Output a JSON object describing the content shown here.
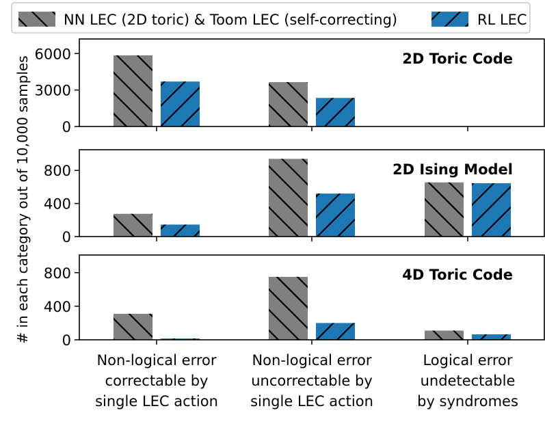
{
  "legend": {
    "position": "top",
    "entries": [
      {
        "label": "NN LEC (2D toric) & Toom LEC (self-correcting)",
        "color": "#808080",
        "hatch": "backslash"
      },
      {
        "label": "RL LEC",
        "color": "#1f77b4",
        "hatch": "slash"
      }
    ]
  },
  "ylabel": "# in each category out of 10,000 samples",
  "categories": [
    [
      "Non-logical error",
      "correctable by",
      "single LEC action"
    ],
    [
      "Non-logical error",
      "uncorrectable by",
      "single LEC action"
    ],
    [
      "Logical error",
      "undetectable",
      "by syndromes"
    ]
  ],
  "chart_data": [
    {
      "type": "bar",
      "title": "2D Toric Code",
      "categories": [
        "Non-logical error correctable by single LEC action",
        "Non-logical error uncorrectable by single LEC action",
        "Logical error undetectable by syndromes"
      ],
      "series": [
        {
          "name": "NN LEC (2D toric) & Toom LEC (self-correcting)",
          "values": [
            5850,
            3650,
            0
          ]
        },
        {
          "name": "RL LEC",
          "values": [
            3700,
            2350,
            0
          ]
        }
      ],
      "yticks": [
        0,
        3000,
        6000
      ],
      "ylim": [
        0,
        7200
      ]
    },
    {
      "type": "bar",
      "title": "2D Ising Model",
      "categories": [
        "Non-logical error correctable by single LEC action",
        "Non-logical error uncorrectable by single LEC action",
        "Logical error undetectable by syndromes"
      ],
      "series": [
        {
          "name": "NN LEC (2D toric) & Toom LEC (self-correcting)",
          "values": [
            275,
            940,
            655
          ]
        },
        {
          "name": "RL LEC",
          "values": [
            145,
            520,
            645
          ]
        }
      ],
      "yticks": [
        0,
        400,
        800
      ],
      "ylim": [
        0,
        1050
      ]
    },
    {
      "type": "bar",
      "title": "4D Toric Code",
      "categories": [
        "Non-logical error correctable by single LEC action",
        "Non-logical error uncorrectable by single LEC action",
        "Logical error undetectable by syndromes"
      ],
      "series": [
        {
          "name": "NN LEC (2D toric) & Toom LEC (self-correcting)",
          "values": [
            310,
            750,
            110
          ]
        },
        {
          "name": "RL LEC",
          "values": [
            15,
            200,
            65
          ]
        }
      ],
      "yticks": [
        0,
        400,
        800
      ],
      "ylim": [
        0,
        1010
      ]
    }
  ]
}
